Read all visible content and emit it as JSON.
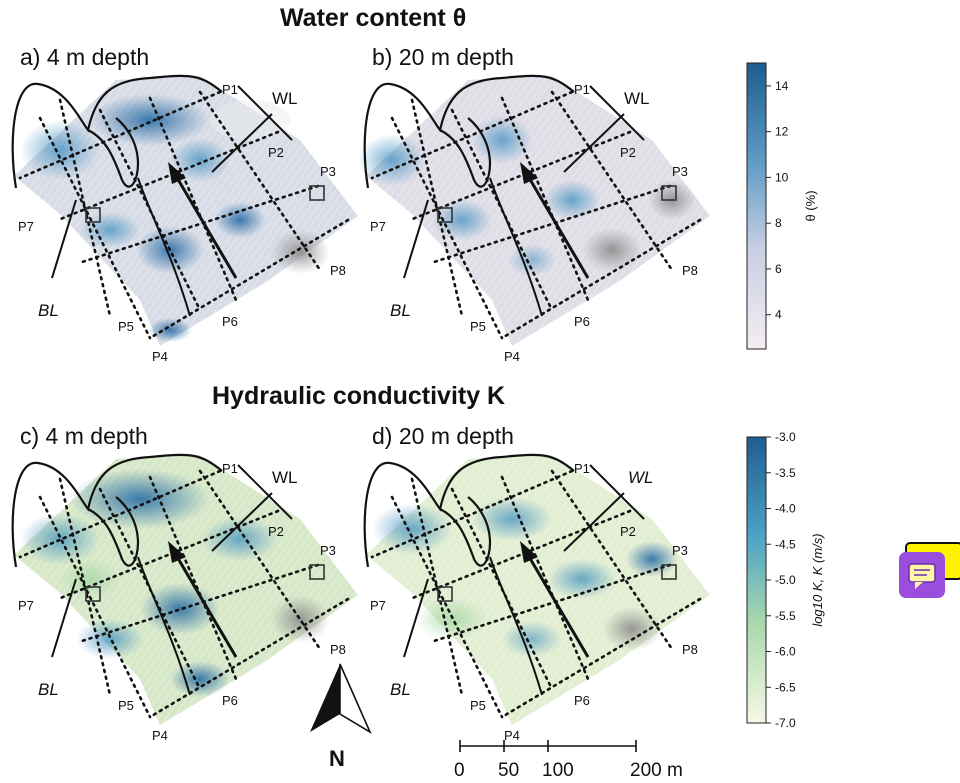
{
  "titles": {
    "top": "Water content θ",
    "bottom": "Hydraulic conductivity K"
  },
  "panels": {
    "a": {
      "label": "a) 4 m depth"
    },
    "b": {
      "label": "b) 20 m depth"
    },
    "c": {
      "label": "c) 4 m depth"
    },
    "d": {
      "label": "d) 20 m depth"
    }
  },
  "profiles": [
    "P1",
    "P2",
    "P3",
    "P4",
    "P5",
    "P6",
    "P7",
    "P8"
  ],
  "annotations": {
    "wl": "WL",
    "bl": "BL"
  },
  "colorbar_theta": {
    "label": "θ (%)",
    "ticks": [
      "14",
      "12",
      "10",
      "8",
      "6",
      "4"
    ],
    "range": [
      2.5,
      15
    ],
    "colors": [
      "#f4edf3",
      "#1f5d8f"
    ]
  },
  "colorbar_k": {
    "label": "log10 K, K (m/s)",
    "ticks": [
      "-3.0",
      "-3.5",
      "-4.0",
      "-4.5",
      "-5.0",
      "-5.5",
      "-6.0",
      "-6.5",
      "-7.0"
    ],
    "range": [
      -7.0,
      -3.0
    ],
    "colors": [
      "#f6f9e6",
      "#1f5d8f"
    ]
  },
  "north": {
    "label": "N"
  },
  "scale_bar": {
    "labels": [
      "0",
      "50",
      "100",
      "200 m"
    ],
    "values": [
      0,
      50,
      100,
      200
    ]
  },
  "widget": {
    "back_color": "#fff200",
    "front_color": "#9b4dde",
    "icon": "chat-icon"
  }
}
